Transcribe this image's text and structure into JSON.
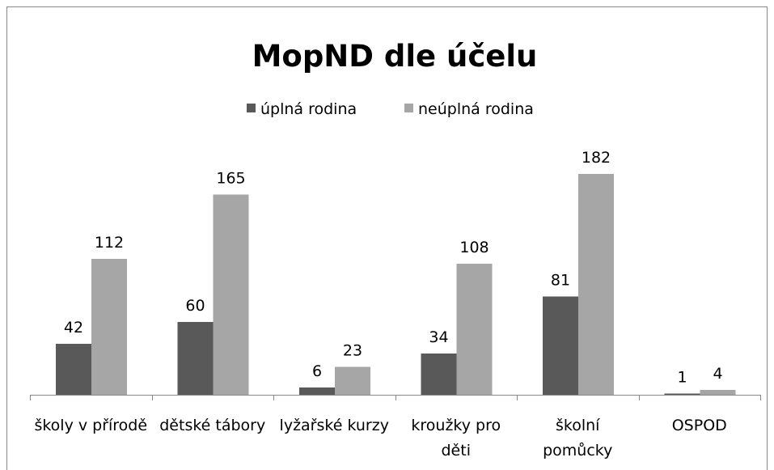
{
  "chart_data": {
    "type": "bar",
    "title": "MopND dle účelu",
    "categories": [
      "školy v přírodě",
      "dětské tábory",
      "lyžařské kurzy",
      "kroužky pro děti",
      "školní pomůcky",
      "OSPOD"
    ],
    "series": [
      {
        "name": "úplná rodina",
        "color": "#595959",
        "values": [
          42,
          60,
          6,
          34,
          81,
          1
        ]
      },
      {
        "name": "neúplná rodina",
        "color": "#a6a6a6",
        "values": [
          112,
          165,
          23,
          108,
          182,
          4
        ]
      }
    ],
    "legend": "top"
  }
}
